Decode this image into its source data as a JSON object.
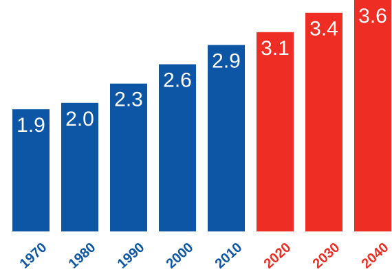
{
  "chart_data": {
    "type": "bar",
    "categories": [
      "1970",
      "1980",
      "1990",
      "2000",
      "2010",
      "2020",
      "2030",
      "2040"
    ],
    "values": [
      1.9,
      2.0,
      2.3,
      2.6,
      2.9,
      3.1,
      3.4,
      3.6
    ],
    "value_labels": [
      "1.9",
      "2.0",
      "2.3",
      "2.6",
      "2.9",
      "3.1",
      "3.4",
      "3.6"
    ],
    "kinds": [
      "historical",
      "historical",
      "historical",
      "historical",
      "historical",
      "projected",
      "projected",
      "projected"
    ],
    "colors": {
      "historical": "#0d56a6",
      "projected": "#ee2e24"
    },
    "title": "",
    "xlabel": "",
    "ylabel": "",
    "ylim": [
      0,
      3.6
    ],
    "grid": false,
    "legend": "none"
  }
}
